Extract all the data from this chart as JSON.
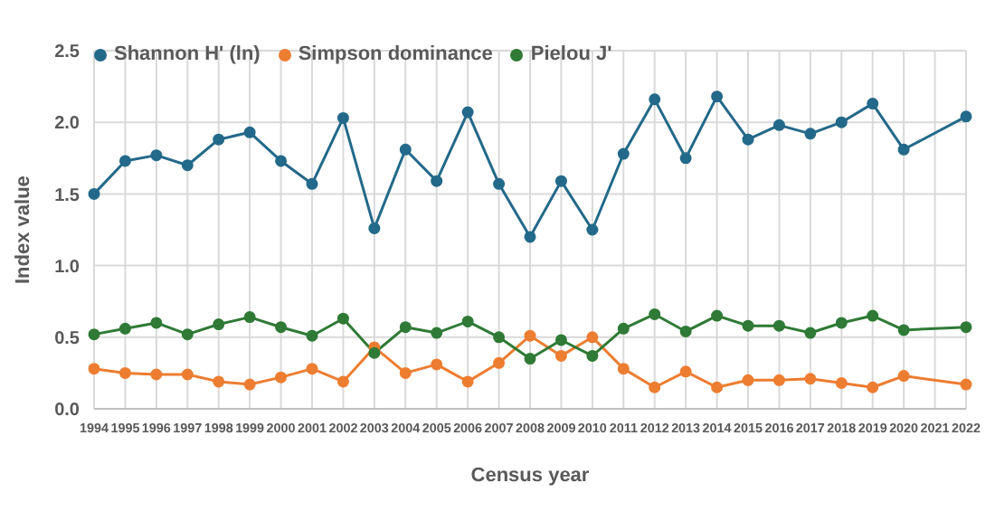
{
  "chart_data": {
    "type": "line",
    "xlabel": "Census year",
    "ylabel": "Index value",
    "categories": [
      "1994",
      "1995",
      "1996",
      "1997",
      "1998",
      "1999",
      "2000",
      "2001",
      "2002",
      "2003",
      "2004",
      "2005",
      "2006",
      "2007",
      "2008",
      "2009",
      "2010",
      "2011",
      "2012",
      "2013",
      "2014",
      "2015",
      "2016",
      "2017",
      "2018",
      "2019",
      "2020",
      "2021",
      "2022"
    ],
    "series": [
      {
        "name": "Shannon H' (ln)",
        "color": "#23698a",
        "values": [
          1.5,
          1.73,
          1.77,
          1.7,
          1.88,
          1.93,
          1.73,
          1.57,
          2.03,
          1.26,
          1.81,
          1.59,
          2.07,
          1.57,
          1.2,
          1.59,
          1.25,
          1.78,
          2.16,
          1.75,
          2.18,
          1.88,
          1.98,
          1.92,
          2.0,
          2.13,
          1.81,
          null,
          2.04
        ]
      },
      {
        "name": "Simpson dominance",
        "color": "#ed7d31",
        "values": [
          0.28,
          0.25,
          0.24,
          0.24,
          0.19,
          0.17,
          0.22,
          0.28,
          0.19,
          0.43,
          0.25,
          0.31,
          0.19,
          0.32,
          0.51,
          0.37,
          0.5,
          0.28,
          0.15,
          0.26,
          0.15,
          0.2,
          0.2,
          0.21,
          0.18,
          0.15,
          0.23,
          null,
          0.17
        ]
      },
      {
        "name": "Pielou J'",
        "color": "#2f7a36",
        "values": [
          0.52,
          0.56,
          0.6,
          0.52,
          0.59,
          0.64,
          0.57,
          0.51,
          0.63,
          0.39,
          0.57,
          0.53,
          0.61,
          0.5,
          0.35,
          0.48,
          0.37,
          0.56,
          0.66,
          0.54,
          0.65,
          0.58,
          0.58,
          0.53,
          0.6,
          0.65,
          0.55,
          null,
          0.57
        ]
      }
    ],
    "ylim": [
      0,
      2.5
    ],
    "yticks": [
      {
        "value": 0,
        "label": "0.0"
      },
      {
        "value": 0.5,
        "label": "0.5"
      },
      {
        "value": 1,
        "label": "1.0"
      },
      {
        "value": 1.5,
        "label": "1.5"
      },
      {
        "value": 2,
        "label": "2.0"
      },
      {
        "value": 2.5,
        "label": "2.5"
      }
    ],
    "grid": true,
    "legend": "top left",
    "marker": "circle",
    "line_style": "solid"
  }
}
